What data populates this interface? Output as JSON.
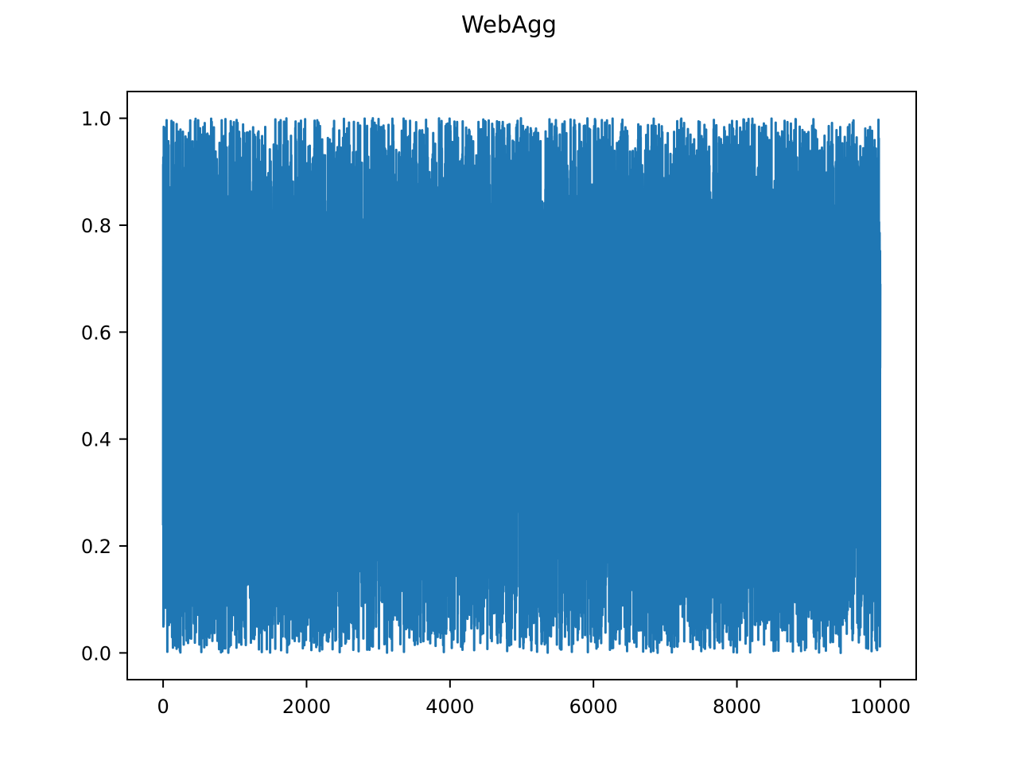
{
  "chart_data": {
    "type": "line",
    "title": "WebAgg",
    "xlabel": "",
    "ylabel": "",
    "xlim": [
      -500,
      10500
    ],
    "ylim": [
      -0.05,
      1.05
    ],
    "xticks": [
      0,
      2000,
      4000,
      6000,
      8000,
      10000
    ],
    "xtick_labels": [
      "0",
      "2000",
      "4000",
      "6000",
      "8000",
      "10000"
    ],
    "yticks": [
      0.0,
      0.2,
      0.4,
      0.6,
      0.8,
      1.0
    ],
    "ytick_labels": [
      "0.0",
      "0.2",
      "0.4",
      "0.6",
      "0.8",
      "1.0"
    ],
    "grid": false,
    "legend": "none",
    "series": [
      {
        "color": "#1f77b4",
        "n_points": 10000,
        "x_range": [
          0,
          9999
        ],
        "y_range": [
          0.0,
          1.0
        ],
        "distribution": "uniform random",
        "seed": 7
      }
    ]
  }
}
